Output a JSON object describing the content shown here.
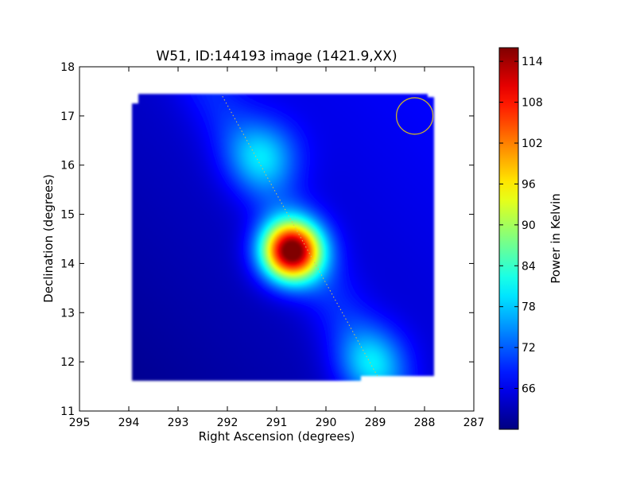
{
  "chart_data": {
    "type": "heatmap",
    "title": "W51, ID:144193 image (1421.9,XX)",
    "xlabel": "Right Ascension (degrees)",
    "ylabel": "Declination (degrees)",
    "xlim": [
      295,
      287
    ],
    "ylim": [
      11,
      18
    ],
    "xticks": [
      295,
      294,
      293,
      292,
      291,
      290,
      289,
      288,
      287
    ],
    "yticks": [
      11,
      12,
      13,
      14,
      15,
      16,
      17,
      18
    ],
    "colorbar": {
      "label": "Power in Kelvin",
      "range": [
        60,
        116
      ],
      "ticks": [
        66,
        72,
        78,
        84,
        90,
        96,
        102,
        108,
        114
      ]
    },
    "colormap": "jet",
    "coverage_region": {
      "ra_range": [
        293.95,
        287.8
      ],
      "dec_range": [
        11.6,
        17.45
      ]
    },
    "background_gradient": {
      "min_corner": {
        "ra": 294.0,
        "dec": 11.7,
        "value": 61
      },
      "max_corner": {
        "ra": 288.0,
        "dec": 17.3,
        "value": 67
      }
    },
    "features": [
      {
        "type": "gaussian-peak",
        "ra": 290.7,
        "dec": 14.25,
        "value": 116,
        "sigma": 0.42
      },
      {
        "type": "gaussian-peak",
        "ra": 291.25,
        "dec": 16.2,
        "value": 76,
        "sigma": 0.5
      },
      {
        "type": "gaussian-peak",
        "ra": 289.05,
        "dec": 12.0,
        "value": 75,
        "sigma": 0.5
      },
      {
        "type": "ridge",
        "from": {
          "ra": 292.3,
          "dec": 17.5
        },
        "to": {
          "ra": 288.8,
          "dec": 11.5
        },
        "value": 69
      }
    ],
    "galactic_plane_line": {
      "from": {
        "ra": 292.1,
        "dec": 17.4
      },
      "to": {
        "ra": 288.95,
        "dec": 11.7
      },
      "color": "#d8c25a",
      "style": "dotted"
    },
    "beam_circle": {
      "ra": 288.2,
      "dec": 17.0,
      "radius_deg": 0.37,
      "color": "#c9b030"
    }
  }
}
